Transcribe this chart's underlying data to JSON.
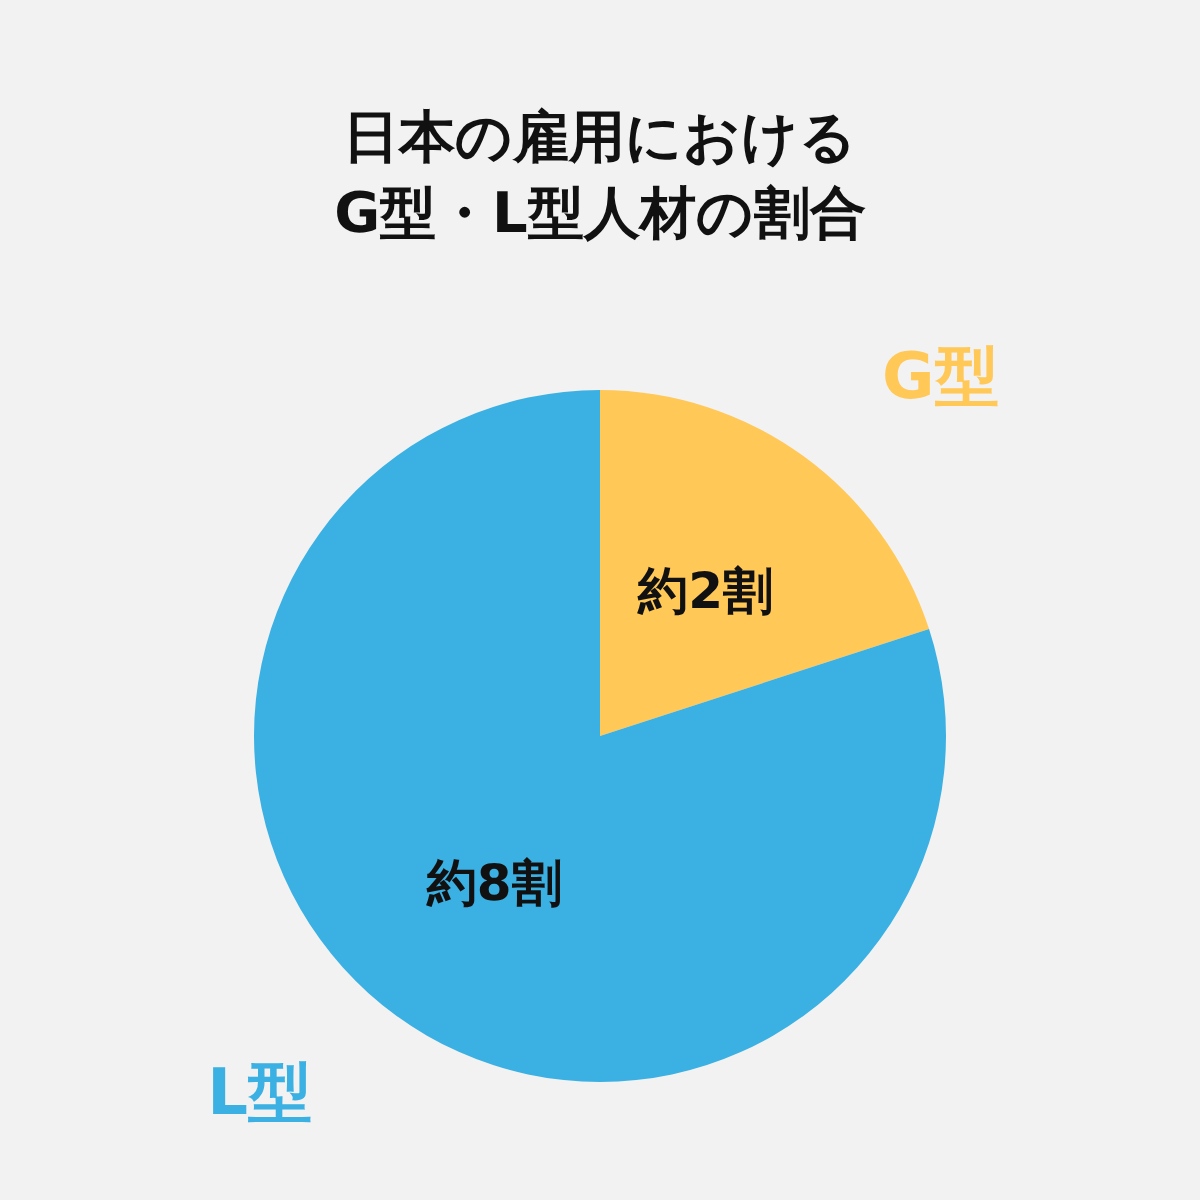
{
  "chart_data": {
    "type": "pie",
    "title": "日本の雇用における\nG型・L型人材の割合",
    "categories": [
      "G型",
      "L型"
    ],
    "values": [
      20,
      80
    ],
    "colors": [
      "#ffc857",
      "#3bb0e3"
    ],
    "value_labels": [
      "約2割",
      "約8割"
    ]
  }
}
